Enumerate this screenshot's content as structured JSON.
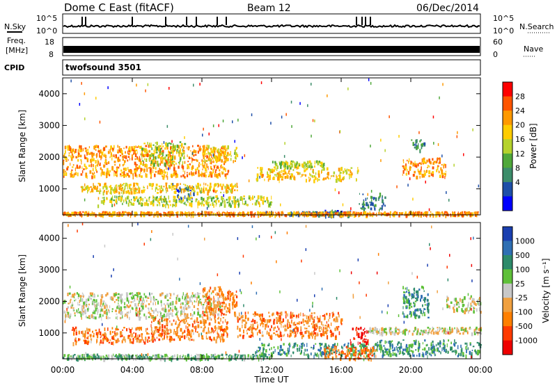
{
  "header": {
    "station": "Dome C East (fitACF)",
    "beam": "Beam 12",
    "date": "06/Dec/2014"
  },
  "nsky_panel": {
    "left_label": "N.Sky",
    "left_ticks": [
      "10^5",
      "10^0"
    ],
    "right_ticks": [
      "10^5",
      "10^0"
    ],
    "right_label": "N.Search"
  },
  "freq_panel": {
    "left_label_line1": "Freq.",
    "left_label_line2": "[MHz]",
    "left_ticks": [
      "18",
      "8"
    ],
    "right_ticks": [
      "60",
      "0"
    ],
    "right_label": "Nave"
  },
  "cpid_panel": {
    "label": "CPID",
    "program": "twofsound 3501"
  },
  "chart_data": [
    {
      "type": "heatmap",
      "name": "power",
      "ylabel": "Slant Range [km]",
      "xlabel": "",
      "ylim": [
        180,
        4500
      ],
      "yticks": [
        "1000",
        "2000",
        "3000",
        "4000"
      ],
      "ytick_values": [
        1000,
        2000,
        3000,
        4000
      ],
      "xlim_hours": [
        0,
        24
      ],
      "colorbar": {
        "label": "Power [dB]",
        "tick_labels": [
          "28",
          "24",
          "20",
          "16",
          "12",
          "8",
          "4"
        ],
        "colors": [
          "#ff0000",
          "#ff5500",
          "#ff9900",
          "#ffcc00",
          "#b5d22c",
          "#4fa83a",
          "#3c8d6a",
          "#1e4fa8",
          "#0000ff"
        ]
      },
      "regions": [
        {
          "t0": 0.0,
          "t1": 9.5,
          "r0": 1400,
          "r1": 2400,
          "level": 2
        },
        {
          "t0": 4.5,
          "t1": 7.0,
          "r0": 1800,
          "r1": 2500,
          "level": 4
        },
        {
          "t0": 6.5,
          "t1": 7.5,
          "r0": 700,
          "r1": 1100,
          "level": 7
        },
        {
          "t0": 1.0,
          "t1": 10.0,
          "r0": 900,
          "r1": 1200,
          "level": 3
        },
        {
          "t0": 8.0,
          "t1": 10.0,
          "r0": 1900,
          "r1": 2400,
          "level": 3
        },
        {
          "t0": 11.0,
          "t1": 17.0,
          "r0": 1300,
          "r1": 1700,
          "level": 3
        },
        {
          "t0": 12.0,
          "t1": 15.0,
          "r0": 1700,
          "r1": 1900,
          "level": 4
        },
        {
          "t0": 15.0,
          "t1": 16.5,
          "r0": 180,
          "r1": 350,
          "level": 7
        },
        {
          "t0": 13.0,
          "t1": 16.0,
          "r0": 200,
          "r1": 300,
          "level": 6
        },
        {
          "t0": 17.0,
          "t1": 18.5,
          "r0": 400,
          "r1": 900,
          "level": 6
        },
        {
          "t0": 19.5,
          "t1": 22.0,
          "r0": 1400,
          "r1": 2000,
          "level": 2
        },
        {
          "t0": 20.0,
          "t1": 20.8,
          "r0": 2200,
          "r1": 2600,
          "level": 6
        },
        {
          "t0": 0.0,
          "t1": 24.0,
          "r0": 200,
          "r1": 300,
          "level": 2
        },
        {
          "t0": 2.0,
          "t1": 12.0,
          "r0": 500,
          "r1": 800,
          "level": 4
        }
      ]
    },
    {
      "type": "heatmap",
      "name": "velocity",
      "ylabel": "Slant Range [km]",
      "xlabel": "Time UT",
      "ylim": [
        180,
        4500
      ],
      "yticks": [
        "1000",
        "2000",
        "3000",
        "4000"
      ],
      "ytick_values": [
        1000,
        2000,
        3000,
        4000
      ],
      "xlim_hours": [
        0,
        24
      ],
      "xticks": [
        "00:00",
        "04:00",
        "08:00",
        "12:00",
        "16:00",
        "20:00",
        "00:00"
      ],
      "xtick_hours": [
        0,
        4,
        8,
        12,
        16,
        20,
        24
      ],
      "colorbar": {
        "label": "Velocity [m s⁻¹]",
        "tick_labels": [
          "1000",
          "500",
          "100",
          "25",
          "-25",
          "-100",
          "-500",
          "-1000"
        ],
        "colors": [
          "#1a3fb0",
          "#2f6fb3",
          "#2d8a6a",
          "#5fc039",
          "#c8c8c8",
          "#f0a040",
          "#ff7f00",
          "#ff3a00",
          "#ee0000"
        ]
      },
      "regions": [
        {
          "t0": 0.0,
          "t1": 9.0,
          "r0": 1500,
          "r1": 2300,
          "level": 4
        },
        {
          "t0": 0.5,
          "t1": 5.0,
          "r0": 700,
          "r1": 1200,
          "level": 6
        },
        {
          "t0": 5.0,
          "t1": 9.5,
          "r0": 800,
          "r1": 1500,
          "level": 6
        },
        {
          "t0": 8.0,
          "t1": 10.0,
          "r0": 1500,
          "r1": 2500,
          "level": 6
        },
        {
          "t0": 10.0,
          "t1": 16.0,
          "r0": 900,
          "r1": 1700,
          "level": 6
        },
        {
          "t0": 11.0,
          "t1": 18.0,
          "r0": 300,
          "r1": 700,
          "level": 2
        },
        {
          "t0": 15.0,
          "t1": 18.0,
          "r0": 200,
          "r1": 600,
          "level": 6
        },
        {
          "t0": 16.5,
          "t1": 17.5,
          "r0": 700,
          "r1": 1200,
          "level": 8
        },
        {
          "t0": 17.5,
          "t1": 24.0,
          "r0": 1000,
          "r1": 1200,
          "level": 4
        },
        {
          "t0": 19.5,
          "t1": 21.0,
          "r0": 1500,
          "r1": 2500,
          "level": 2
        },
        {
          "t0": 18.0,
          "t1": 24.0,
          "r0": 300,
          "r1": 800,
          "level": 2
        },
        {
          "t0": 0.0,
          "t1": 12.0,
          "r0": 200,
          "r1": 350,
          "level": 3
        },
        {
          "t0": 22.0,
          "t1": 24.0,
          "r0": 1700,
          "r1": 2200,
          "level": 4
        }
      ]
    }
  ]
}
